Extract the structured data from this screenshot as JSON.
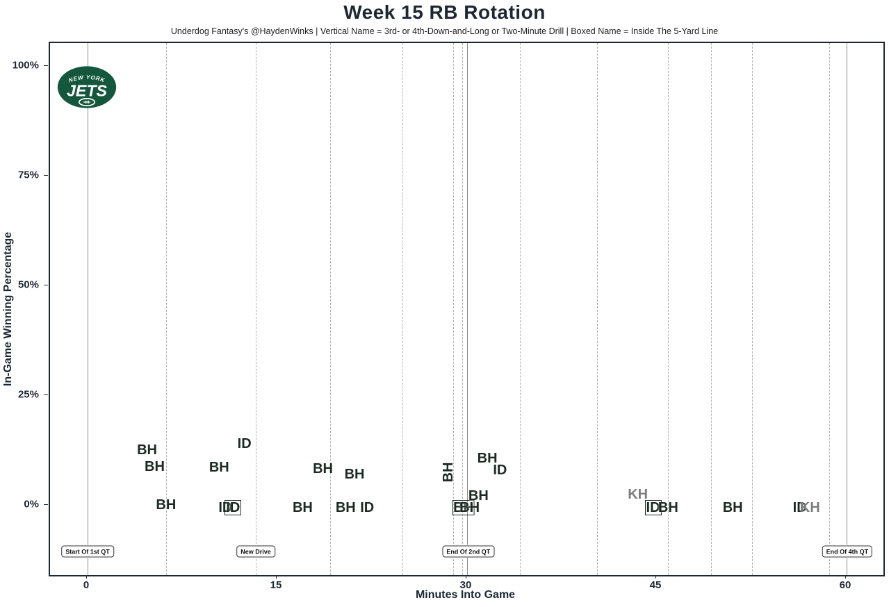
{
  "header": {
    "title": "Week 15 RB Rotation",
    "subtitle": "Underdog Fantasy's @HaydenWinks | Vertical Name = 3rd- or 4th-Down-and-Long or Two-Minute Drill | Boxed Name = Inside The 5-Yard Line"
  },
  "colors": {
    "frame": "#1d2733",
    "point_dark": "#1b2a23",
    "point_gray": "#7d7d7d",
    "solid_line_gray": "#8c8c8c",
    "dashed_line_gray": "#b3b3b3",
    "team_green": "#15573c"
  },
  "team_logo": "new-york-jets",
  "logo_text": {
    "top": "NEW YORK",
    "main": "JETS"
  },
  "chart_data": {
    "type": "scatter",
    "title": "Week 15 RB Rotation",
    "xlabel": "Minutes Into Game",
    "ylabel": "In-Game Winning Percentage",
    "xlim": [
      -3,
      63
    ],
    "ylim": [
      -16,
      105
    ],
    "grid": "vertical-drive-lines-only",
    "x_ticks": [
      0,
      15,
      30,
      45,
      60
    ],
    "y_ticks": [
      0,
      25,
      50,
      75,
      100
    ],
    "y_tick_labels": [
      "0%",
      "25%",
      "50%",
      "75%",
      "100%"
    ],
    "solid_vlines_min": [
      0,
      30,
      60
    ],
    "dashed_vlines_min": [
      6.2,
      13.3,
      19.2,
      24.9,
      28.9,
      29.6,
      34.2,
      40.3,
      45.9,
      49.3,
      52.5,
      58.6
    ],
    "annotations": [
      {
        "label": "Start Of 1st QT",
        "min": 0
      },
      {
        "label": "New Drive",
        "min": 13.3
      },
      {
        "label": "End Of 2nd QT",
        "min": 30.1
      },
      {
        "label": "End Of 4th QT",
        "min": 60.05
      }
    ],
    "points": [
      {
        "label": "BH",
        "min": 4.7,
        "pct": 12.7,
        "boxed": false,
        "vertical": false,
        "gray": false
      },
      {
        "label": "BH",
        "min": 5.3,
        "pct": 8.9,
        "boxed": false,
        "vertical": false,
        "gray": false
      },
      {
        "label": "BH",
        "min": 6.2,
        "pct": 0.2,
        "boxed": false,
        "vertical": false,
        "gray": false
      },
      {
        "label": "BH",
        "min": 10.4,
        "pct": 8.7,
        "boxed": false,
        "vertical": false,
        "gray": false
      },
      {
        "label": "ID",
        "min": 10.9,
        "pct": -0.4,
        "boxed": false,
        "vertical": false,
        "gray": false
      },
      {
        "label": "ID",
        "min": 11.5,
        "pct": -0.4,
        "boxed": true,
        "vertical": false,
        "gray": false
      },
      {
        "label": "ID",
        "min": 12.4,
        "pct": 14.1,
        "boxed": false,
        "vertical": false,
        "gray": false
      },
      {
        "label": "BH",
        "min": 17.0,
        "pct": -0.4,
        "boxed": false,
        "vertical": false,
        "gray": false
      },
      {
        "label": "BH",
        "min": 18.6,
        "pct": 8.4,
        "boxed": false,
        "vertical": false,
        "gray": false
      },
      {
        "label": "BH",
        "min": 20.4,
        "pct": -0.4,
        "boxed": false,
        "vertical": false,
        "gray": false
      },
      {
        "label": "BH",
        "min": 21.1,
        "pct": 7.1,
        "boxed": false,
        "vertical": false,
        "gray": false
      },
      {
        "label": "ID",
        "min": 22.1,
        "pct": -0.4,
        "boxed": false,
        "vertical": false,
        "gray": false
      },
      {
        "label": "BH",
        "min": 28.5,
        "pct": 7.6,
        "boxed": false,
        "vertical": true,
        "gray": false
      },
      {
        "label": "BH",
        "min": 29.7,
        "pct": -0.4,
        "boxed": true,
        "vertical": false,
        "gray": false
      },
      {
        "label": "BH",
        "min": 30.2,
        "pct": -0.4,
        "boxed": false,
        "vertical": false,
        "gray": false
      },
      {
        "label": "BH",
        "min": 30.9,
        "pct": 2.2,
        "boxed": false,
        "vertical": false,
        "gray": false
      },
      {
        "label": "BH",
        "min": 31.6,
        "pct": 10.8,
        "boxed": false,
        "vertical": false,
        "gray": false
      },
      {
        "label": "ID",
        "min": 32.6,
        "pct": 8.1,
        "boxed": false,
        "vertical": false,
        "gray": false
      },
      {
        "label": "KH",
        "min": 43.5,
        "pct": 2.5,
        "boxed": false,
        "vertical": false,
        "gray": true
      },
      {
        "label": "ID",
        "min": 44.7,
        "pct": -0.4,
        "boxed": true,
        "vertical": false,
        "gray": false
      },
      {
        "label": "BH",
        "min": 45.9,
        "pct": -0.4,
        "boxed": false,
        "vertical": false,
        "gray": false
      },
      {
        "label": "BH",
        "min": 51.0,
        "pct": -0.4,
        "boxed": false,
        "vertical": false,
        "gray": false
      },
      {
        "label": "ID",
        "min": 56.3,
        "pct": -0.4,
        "boxed": false,
        "vertical": false,
        "gray": false
      },
      {
        "label": "KH",
        "min": 57.1,
        "pct": -0.4,
        "boxed": false,
        "vertical": false,
        "gray": true
      }
    ]
  }
}
